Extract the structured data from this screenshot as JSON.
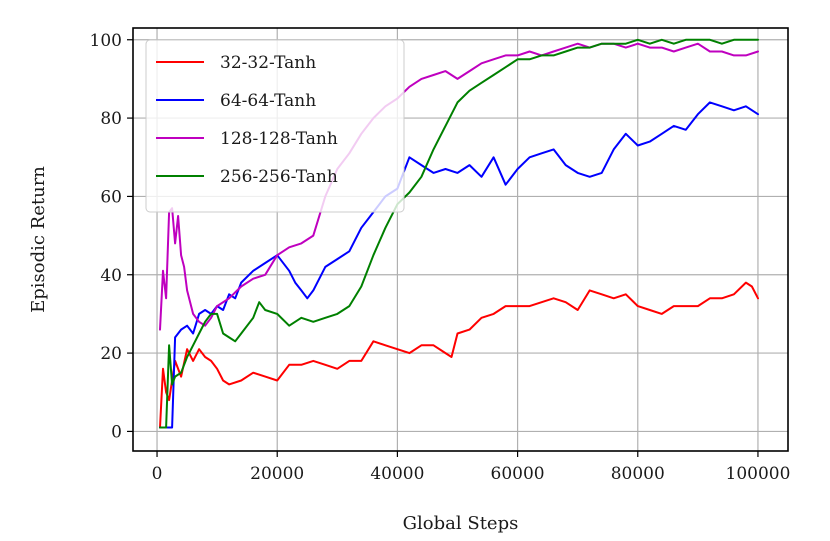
{
  "chart_data": {
    "type": "line",
    "xlabel": "Global Steps",
    "ylabel": "Episodic Return",
    "xlim": [
      -4000,
      105000
    ],
    "ylim": [
      -5,
      103
    ],
    "xticks": [
      0,
      20000,
      40000,
      60000,
      80000,
      100000
    ],
    "xtick_labels": [
      "0",
      "20000",
      "40000",
      "60000",
      "80000",
      "100000"
    ],
    "yticks": [
      0,
      20,
      40,
      60,
      80,
      100
    ],
    "ytick_labels": [
      "0",
      "20",
      "40",
      "60",
      "80",
      "100"
    ],
    "grid": true,
    "legend_placement": "upper-left",
    "series": [
      {
        "name": "32-32-Tanh",
        "color": "#ff0000",
        "x": [
          500,
          1000,
          1500,
          2000,
          3000,
          4000,
          5000,
          6000,
          7000,
          8000,
          9000,
          10000,
          11000,
          12000,
          14000,
          16000,
          18000,
          20000,
          22000,
          24000,
          26000,
          28000,
          30000,
          32000,
          34000,
          36000,
          38000,
          40000,
          42000,
          44000,
          46000,
          48000,
          49000,
          50000,
          52000,
          54000,
          56000,
          58000,
          60000,
          62000,
          64000,
          66000,
          68000,
          70000,
          72000,
          74000,
          76000,
          78000,
          80000,
          82000,
          84000,
          86000,
          88000,
          90000,
          92000,
          94000,
          96000,
          98000,
          99000,
          100000
        ],
        "y": [
          1,
          16,
          10,
          8,
          18,
          14,
          21,
          18,
          21,
          19,
          18,
          16,
          13,
          12,
          13,
          15,
          14,
          13,
          17,
          17,
          18,
          17,
          16,
          18,
          18,
          23,
          22,
          21,
          20,
          22,
          22,
          20,
          19,
          25,
          26,
          29,
          30,
          32,
          32,
          32,
          33,
          34,
          33,
          31,
          36,
          35,
          34,
          35,
          32,
          31,
          30,
          32,
          32,
          32,
          34,
          34,
          35,
          38,
          37,
          34
        ]
      },
      {
        "name": "64-64-Tanh",
        "color": "#0000ff",
        "x": [
          500,
          1500,
          2500,
          3000,
          4000,
          5000,
          6000,
          7000,
          8000,
          9000,
          10000,
          11000,
          12000,
          13000,
          14000,
          16000,
          18000,
          20000,
          22000,
          23000,
          24000,
          25000,
          26000,
          28000,
          30000,
          32000,
          34000,
          36000,
          38000,
          40000,
          41000,
          42000,
          44000,
          46000,
          48000,
          50000,
          52000,
          54000,
          56000,
          58000,
          60000,
          62000,
          64000,
          66000,
          68000,
          70000,
          72000,
          74000,
          76000,
          78000,
          80000,
          82000,
          84000,
          86000,
          88000,
          90000,
          92000,
          94000,
          96000,
          98000,
          100000
        ],
        "y": [
          1,
          1,
          1,
          24,
          26,
          27,
          25,
          30,
          31,
          30,
          32,
          31,
          35,
          34,
          38,
          41,
          43,
          45,
          41,
          38,
          36,
          34,
          36,
          42,
          44,
          46,
          52,
          56,
          60,
          62,
          66,
          70,
          68,
          66,
          67,
          66,
          68,
          65,
          70,
          63,
          67,
          70,
          71,
          72,
          68,
          66,
          65,
          66,
          72,
          76,
          73,
          74,
          76,
          78,
          77,
          81,
          84,
          83,
          82,
          83,
          81
        ]
      },
      {
        "name": "128-128-Tanh",
        "color": "#bf00bf",
        "x": [
          500,
          1000,
          1500,
          2000,
          2500,
          3000,
          3500,
          4000,
          4500,
          5000,
          6000,
          7000,
          8000,
          9000,
          10000,
          12000,
          14000,
          16000,
          18000,
          20000,
          22000,
          24000,
          26000,
          28000,
          30000,
          32000,
          34000,
          36000,
          38000,
          40000,
          42000,
          44000,
          46000,
          48000,
          50000,
          52000,
          54000,
          56000,
          58000,
          60000,
          62000,
          64000,
          66000,
          68000,
          70000,
          72000,
          74000,
          76000,
          78000,
          80000,
          82000,
          84000,
          86000,
          88000,
          90000,
          92000,
          94000,
          96000,
          98000,
          100000
        ],
        "y": [
          26,
          41,
          34,
          56,
          57,
          48,
          55,
          45,
          42,
          36,
          30,
          28,
          27,
          29,
          32,
          34,
          37,
          39,
          40,
          45,
          47,
          48,
          50,
          60,
          67,
          71,
          76,
          80,
          83,
          85,
          88,
          90,
          91,
          92,
          90,
          92,
          94,
          95,
          96,
          96,
          97,
          96,
          97,
          98,
          99,
          98,
          99,
          99,
          98,
          99,
          98,
          98,
          97,
          98,
          99,
          97,
          97,
          96,
          96,
          97
        ]
      },
      {
        "name": "256-256-Tanh",
        "color": "#008000",
        "x": [
          500,
          1500,
          2000,
          2500,
          3000,
          4000,
          5000,
          6000,
          7000,
          8000,
          9000,
          10000,
          11000,
          12000,
          13000,
          14000,
          16000,
          17000,
          18000,
          20000,
          22000,
          24000,
          26000,
          28000,
          30000,
          32000,
          34000,
          36000,
          38000,
          40000,
          42000,
          44000,
          46000,
          48000,
          50000,
          52000,
          54000,
          56000,
          58000,
          60000,
          62000,
          64000,
          66000,
          68000,
          70000,
          72000,
          74000,
          76000,
          78000,
          80000,
          82000,
          84000,
          86000,
          88000,
          90000,
          92000,
          94000,
          96000,
          98000,
          100000
        ],
        "y": [
          1,
          1,
          22,
          12,
          14,
          15,
          19,
          22,
          25,
          28,
          30,
          30,
          25,
          24,
          23,
          25,
          29,
          33,
          31,
          30,
          27,
          29,
          28,
          29,
          30,
          32,
          37,
          45,
          52,
          58,
          61,
          65,
          72,
          78,
          84,
          87,
          89,
          91,
          93,
          95,
          95,
          96,
          96,
          97,
          98,
          98,
          99,
          99,
          99,
          100,
          99,
          100,
          99,
          100,
          100,
          100,
          99,
          100,
          100,
          100
        ]
      }
    ]
  }
}
